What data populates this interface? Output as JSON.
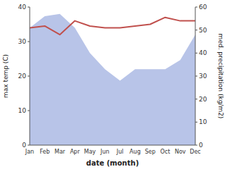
{
  "chart_data": {
    "type": "line",
    "xlabel": "date (month)",
    "ylabel": "max temp (C)",
    "y2label": "med. precipitation (kg/m2)",
    "categories": [
      "Jan",
      "Feb",
      "Mar",
      "Apr",
      "May",
      "Jun",
      "Jul",
      "Aug",
      "Sep",
      "Oct",
      "Nov",
      "Dec"
    ],
    "series": [
      {
        "type": "area",
        "axis": "y2",
        "color": "#b8c4e8",
        "values": [
          51,
          56,
          57,
          51,
          40,
          33,
          28,
          33,
          33,
          33,
          37,
          48
        ]
      },
      {
        "type": "line",
        "color": "#c0504d",
        "values": [
          34,
          34.5,
          32,
          36,
          34.5,
          34,
          34,
          34.5,
          35,
          37,
          36,
          36
        ]
      }
    ],
    "ylim": [
      0,
      40
    ],
    "yticks": [
      0,
      10,
      20,
      30,
      40
    ],
    "y2lim": [
      0,
      60
    ],
    "y2ticks": [
      0,
      10,
      20,
      30,
      40,
      50,
      60
    ],
    "grid": false
  }
}
